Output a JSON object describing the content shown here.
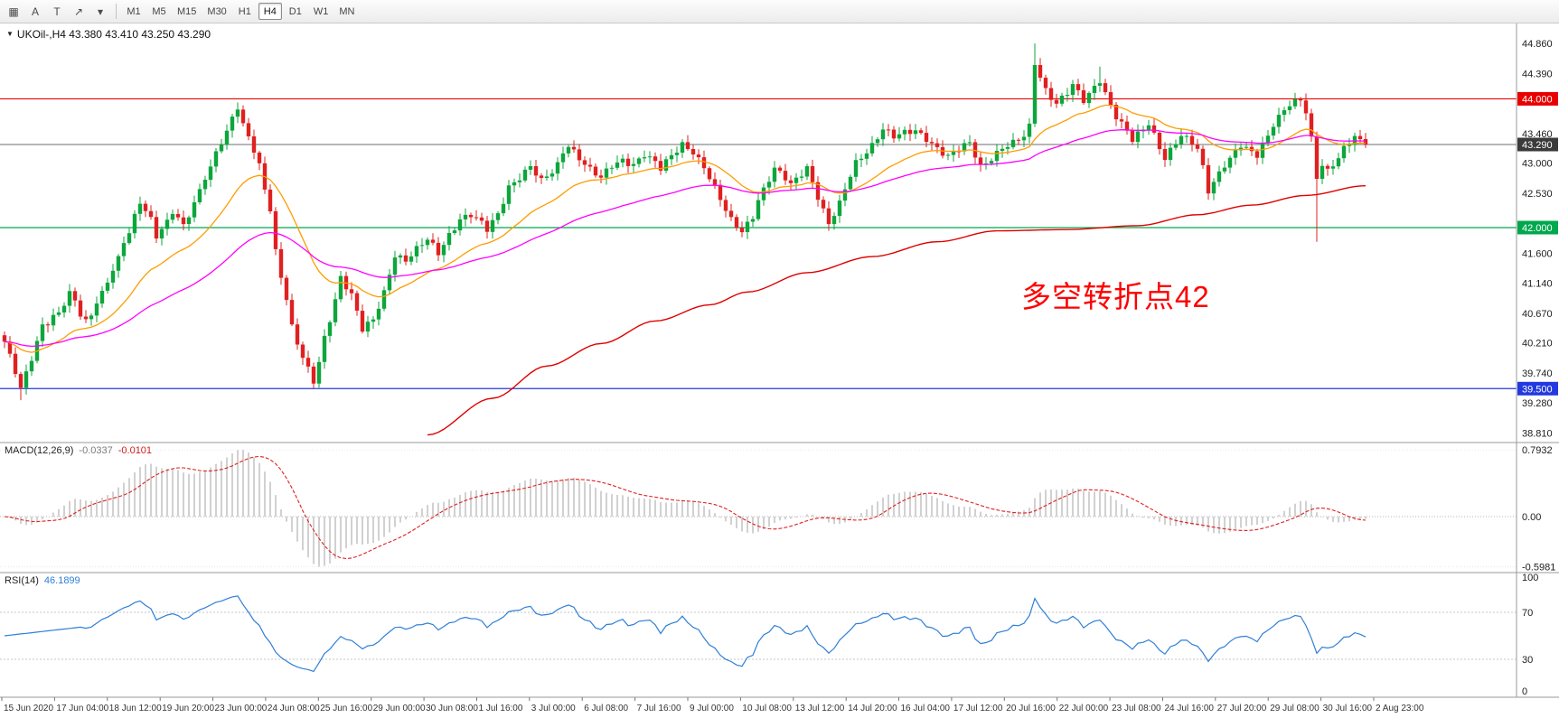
{
  "toolbar": {
    "icons": [
      {
        "name": "chart-window-icon",
        "glyph": "▦"
      },
      {
        "name": "cursor-tool-icon",
        "glyph": "A"
      },
      {
        "name": "text-tool-icon",
        "glyph": "T"
      },
      {
        "name": "draw-arrow-tool-icon",
        "glyph": "↗"
      },
      {
        "name": "dropdown-caret-icon",
        "glyph": "▾"
      }
    ],
    "timeframes": [
      "M1",
      "M5",
      "M15",
      "M30",
      "H1",
      "H4",
      "D1",
      "W1",
      "MN"
    ],
    "active_timeframe": "H4"
  },
  "chart": {
    "dropdown_glyph": "▼",
    "symbol_line": "UKOil-,H4 43.380 43.410 43.250 43.290",
    "annotation": {
      "text": "多空转折点42",
      "color": "#ff0000"
    },
    "hlines": [
      {
        "price": 44.0,
        "color": "#e80000"
      },
      {
        "price": 42.0,
        "color": "#00a84d"
      },
      {
        "price": 39.5,
        "color": "#2339e0"
      }
    ],
    "current_price": {
      "value": 43.29,
      "label": "43.290"
    },
    "price_scale": {
      "ticks": [
        "44.860",
        "44.390",
        "43.460",
        "43.000",
        "42.530",
        "41.600",
        "41.140",
        "40.670",
        "40.210",
        "39.740",
        "39.280",
        "38.810"
      ],
      "badges": [
        {
          "value": "44.000",
          "color": "#e80000"
        },
        {
          "value": "43.290",
          "color": "#3a3a3a"
        },
        {
          "value": "42.000",
          "color": "#00a84d"
        },
        {
          "value": "39.500",
          "color": "#2339e0"
        }
      ]
    }
  },
  "macd": {
    "label": "MACD(12,26,9)",
    "value_macd": "-0.0337",
    "value_signal": "-0.0101",
    "params": {
      "fast": 12,
      "slow": 26,
      "signal": 9
    },
    "scale_labels": [
      "0.7932",
      "0.00",
      "-0.5981"
    ],
    "scale_max": 0.7932,
    "scale_min": -0.5981
  },
  "rsi": {
    "label": "RSI(14)",
    "value": "46.1899",
    "period": 14,
    "levels": [
      70,
      30
    ],
    "scale_labels": [
      "100",
      "70",
      "30",
      "0"
    ]
  },
  "time_axis": {
    "labels": [
      "15 Jun 2020",
      "17 Jun 04:00",
      "18 Jun 12:00",
      "19 Jun 20:00",
      "23 Jun 00:00",
      "24 Jun 08:00",
      "25 Jun 16:00",
      "29 Jun 00:00",
      "30 Jun 08:00",
      "1 Jul 16:00",
      "3 Jul 00:00",
      "6 Jul 08:00",
      "7 Jul 16:00",
      "9 Jul 00:00",
      "10 Jul 08:00",
      "13 Jul 12:00",
      "14 Jul 20:00",
      "16 Jul 04:00",
      "17 Jul 12:00",
      "20 Jul 16:00",
      "22 Jul 00:00",
      "23 Jul 08:00",
      "24 Jul 16:00",
      "27 Jul 20:00",
      "29 Jul 08:00",
      "30 Jul 16:00",
      "2 Aug 23:00"
    ]
  },
  "colors": {
    "up": "#0da63c",
    "down": "#e02020",
    "ma_fast": "#ff9c00",
    "ma_mid": "#ff00ff",
    "ma_slow": "#e00000",
    "macd_hist": "#b8b8b8",
    "macd_signal": "#e01f1f",
    "rsi_line": "#2f7fd6",
    "bid_line": "#6e6e6e"
  },
  "chart_data": {
    "type": "candlestick",
    "symbol": "UKOil-",
    "timeframe": "H4",
    "open": "43.380",
    "high": "43.410",
    "low": "43.250",
    "close": "43.290",
    "candle_count": 252,
    "last_close": 43.29,
    "ma_fast_period": 21,
    "ma_mid_period": 55,
    "anchors": [
      [
        0,
        40.2
      ],
      [
        2,
        39.75
      ],
      [
        3,
        39.5
      ],
      [
        5,
        40.0
      ],
      [
        7,
        40.5
      ],
      [
        10,
        40.65
      ],
      [
        12,
        40.95
      ],
      [
        15,
        40.55
      ],
      [
        18,
        41.0
      ],
      [
        20,
        41.35
      ],
      [
        23,
        41.9
      ],
      [
        25,
        42.4
      ],
      [
        27,
        42.15
      ],
      [
        28,
        41.9
      ],
      [
        30,
        42.1
      ],
      [
        31,
        42.25
      ],
      [
        33,
        42.0
      ],
      [
        35,
        42.35
      ],
      [
        37,
        42.8
      ],
      [
        40,
        43.35
      ],
      [
        43,
        43.85
      ],
      [
        44,
        43.55
      ],
      [
        45,
        43.4
      ],
      [
        47,
        42.95
      ],
      [
        49,
        42.3
      ],
      [
        50,
        41.65
      ],
      [
        52,
        40.9
      ],
      [
        53,
        40.45
      ],
      [
        55,
        39.95
      ],
      [
        57,
        39.6
      ],
      [
        58,
        39.9
      ],
      [
        59,
        40.3
      ],
      [
        61,
        40.9
      ],
      [
        62,
        41.25
      ],
      [
        64,
        40.95
      ],
      [
        66,
        40.4
      ],
      [
        68,
        40.55
      ],
      [
        70,
        41.0
      ],
      [
        72,
        41.6
      ],
      [
        74,
        41.5
      ],
      [
        76,
        41.65
      ],
      [
        78,
        41.8
      ],
      [
        80,
        41.6
      ],
      [
        82,
        41.9
      ],
      [
        84,
        42.15
      ],
      [
        86,
        42.2
      ],
      [
        88,
        42.05
      ],
      [
        89,
        41.95
      ],
      [
        91,
        42.2
      ],
      [
        93,
        42.65
      ],
      [
        95,
        42.8
      ],
      [
        97,
        42.95
      ],
      [
        99,
        42.7
      ],
      [
        101,
        42.85
      ],
      [
        104,
        43.3
      ],
      [
        106,
        43.1
      ],
      [
        108,
        42.9
      ],
      [
        110,
        42.75
      ],
      [
        112,
        42.95
      ],
      [
        114,
        43.05
      ],
      [
        116,
        43.0
      ],
      [
        118,
        43.15
      ],
      [
        120,
        43.0
      ],
      [
        121,
        42.9
      ],
      [
        123,
        43.1
      ],
      [
        125,
        43.3
      ],
      [
        127,
        43.2
      ],
      [
        129,
        42.95
      ],
      [
        131,
        42.6
      ],
      [
        133,
        42.25
      ],
      [
        134,
        42.1
      ],
      [
        136,
        41.95
      ],
      [
        138,
        42.2
      ],
      [
        139,
        42.45
      ],
      [
        141,
        42.75
      ],
      [
        142,
        42.9
      ],
      [
        144,
        42.75
      ],
      [
        145,
        42.65
      ],
      [
        147,
        42.85
      ],
      [
        148,
        42.95
      ],
      [
        150,
        42.5
      ],
      [
        152,
        42.05
      ],
      [
        154,
        42.35
      ],
      [
        156,
        42.8
      ],
      [
        157,
        43.0
      ],
      [
        159,
        43.2
      ],
      [
        160,
        43.3
      ],
      [
        162,
        43.55
      ],
      [
        164,
        43.4
      ],
      [
        166,
        43.45
      ],
      [
        168,
        43.5
      ],
      [
        170,
        43.4
      ],
      [
        172,
        43.25
      ],
      [
        174,
        43.1
      ],
      [
        176,
        43.2
      ],
      [
        178,
        43.3
      ],
      [
        180,
        42.95
      ],
      [
        182,
        43.1
      ],
      [
        184,
        43.25
      ],
      [
        186,
        43.3
      ],
      [
        188,
        43.4
      ],
      [
        189,
        43.55
      ],
      [
        190,
        44.55
      ],
      [
        191,
        44.35
      ],
      [
        192,
        44.15
      ],
      [
        194,
        43.95
      ],
      [
        196,
        44.1
      ],
      [
        197,
        44.2
      ],
      [
        199,
        43.95
      ],
      [
        200,
        44.05
      ],
      [
        202,
        44.3
      ],
      [
        203,
        44.1
      ],
      [
        205,
        43.75
      ],
      [
        207,
        43.5
      ],
      [
        208,
        43.35
      ],
      [
        210,
        43.5
      ],
      [
        211,
        43.6
      ],
      [
        213,
        43.25
      ],
      [
        214,
        43.1
      ],
      [
        216,
        43.35
      ],
      [
        217,
        43.45
      ],
      [
        219,
        43.3
      ],
      [
        220,
        43.2
      ],
      [
        221,
        42.9
      ],
      [
        222,
        42.55
      ],
      [
        224,
        42.85
      ],
      [
        225,
        43.0
      ],
      [
        227,
        43.2
      ],
      [
        228,
        43.3
      ],
      [
        230,
        43.15
      ],
      [
        231,
        43.1
      ],
      [
        233,
        43.4
      ],
      [
        234,
        43.6
      ],
      [
        236,
        43.85
      ],
      [
        237,
        43.95
      ],
      [
        239,
        44.0
      ],
      [
        240,
        43.8
      ],
      [
        241,
        43.35
      ],
      [
        242,
        42.75
      ],
      [
        243,
        42.95
      ],
      [
        244,
        42.85
      ],
      [
        246,
        43.1
      ],
      [
        247,
        43.25
      ],
      [
        249,
        43.45
      ],
      [
        250,
        43.35
      ],
      [
        251,
        43.29
      ]
    ],
    "wick_events": [
      {
        "i": 3,
        "l": 39.32
      },
      {
        "i": 57,
        "l": 39.5
      },
      {
        "i": 136,
        "l": 41.85
      },
      {
        "i": 152,
        "l": 41.95
      },
      {
        "i": 190,
        "h": 44.86
      },
      {
        "i": 202,
        "h": 44.5
      },
      {
        "i": 242,
        "l": 41.78
      }
    ],
    "slow_ma_anchors": [
      [
        78,
        38.78
      ],
      [
        90,
        39.35
      ],
      [
        100,
        39.85
      ],
      [
        110,
        40.2
      ],
      [
        120,
        40.55
      ],
      [
        130,
        40.8
      ],
      [
        137,
        41.0
      ],
      [
        148,
        41.3
      ],
      [
        160,
        41.55
      ],
      [
        172,
        41.78
      ],
      [
        183,
        41.95
      ],
      [
        196,
        41.97
      ],
      [
        209,
        42.03
      ],
      [
        220,
        42.2
      ],
      [
        230,
        42.35
      ],
      [
        240,
        42.5
      ],
      [
        251,
        42.65
      ]
    ]
  }
}
